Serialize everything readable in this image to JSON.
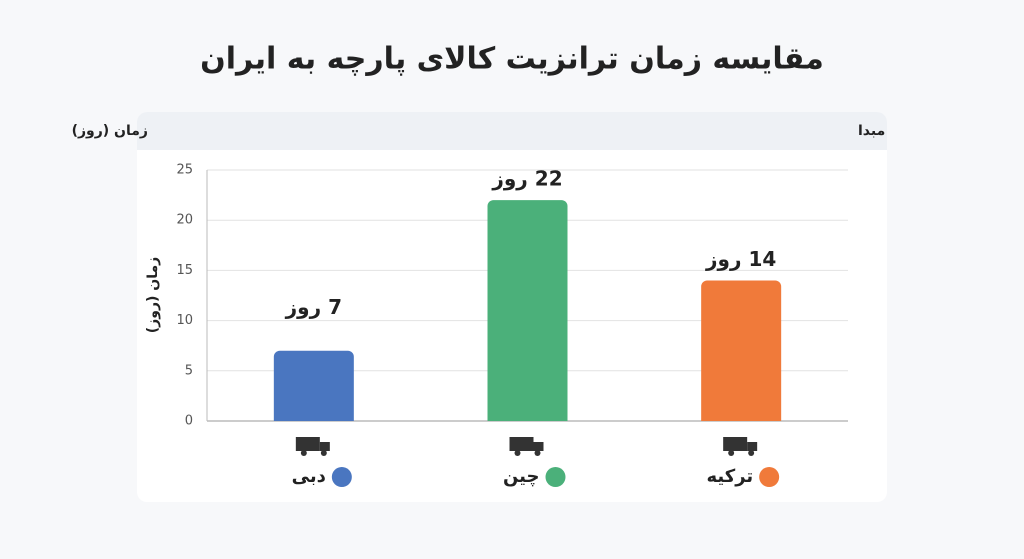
{
  "chart_data": {
    "type": "bar",
    "title": "مقایسه زمان ترانزیت کالای پارچه به ایران",
    "header": {
      "category": "مبدا",
      "value": "زمان (روز)"
    },
    "y_label": "زمان (روز)",
    "categories": [
      "دبی",
      "چین",
      "ترکیه"
    ],
    "values": [
      7,
      22,
      14
    ],
    "value_labels": [
      "7 روز",
      "22 روز",
      "14 روز"
    ],
    "colors": [
      "#4a76c0",
      "#4bb07a",
      "#f07a3a"
    ],
    "ylim": [
      0,
      25
    ],
    "yticks": [
      0,
      5,
      10,
      15,
      20,
      25
    ],
    "grid": true
  }
}
